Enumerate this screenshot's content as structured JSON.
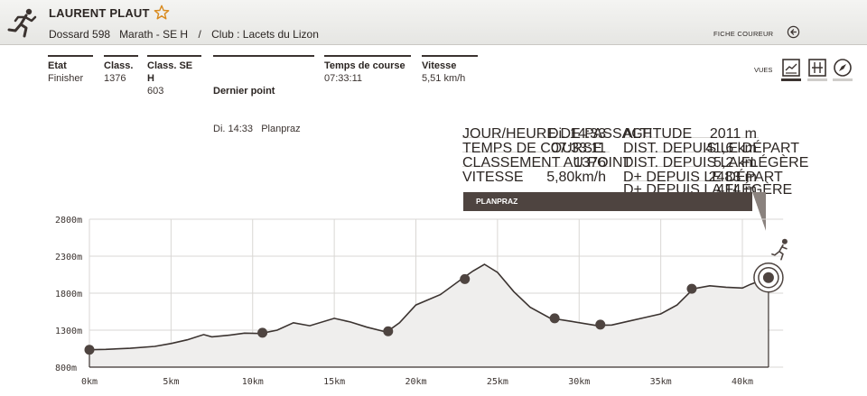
{
  "header": {
    "runner_name": "LAURENT PLAUT",
    "bib": "Dossard 598",
    "category": "Marath - SE H",
    "separator": "/",
    "club": "Club : Lacets du Lizon",
    "fiche_label": "FICHE COUREUR",
    "icons": {
      "runner": "runner-icon",
      "favorite": "star-outline-icon",
      "back": "circle-arrow-left-icon"
    }
  },
  "stats": [
    {
      "label": "Etat",
      "value": "Finisher"
    },
    {
      "label": "Class.",
      "value": "1376"
    },
    {
      "label": "Class. SE H",
      "value": "603"
    },
    {
      "label": "Dernier point",
      "value": "Di. 14:33   Planpraz"
    },
    {
      "label": "Temps de course",
      "value": "07:33:11"
    },
    {
      "label": "Vitesse",
      "value": "5,51 km/h"
    }
  ],
  "views": {
    "label": "VUES",
    "buttons": [
      "chart-view-icon",
      "grid-view-icon",
      "compass-view-icon"
    ],
    "active": 0
  },
  "checkpoint_info": {
    "left": [
      {
        "label": "JOUR/HEURE DE PASSAGE",
        "value": "Di. 14:33"
      },
      {
        "label": "TEMPS DE COURSE",
        "value": "07:33:11"
      },
      {
        "label": "CLASSEMENT AU POINT",
        "value": "1376"
      },
      {
        "label": "VITESSE",
        "value": "5,80km/h"
      }
    ],
    "right": [
      {
        "label": "ALTITUDE",
        "value": "2011 m"
      },
      {
        "label": "DIST. DEPUIS LE DÉPART",
        "value": "41,6 km"
      },
      {
        "label": "DIST. DEPUIS LA FLÉGÈRE",
        "value": "5,2 km"
      },
      {
        "label": "D+ DEPUIS LE DÉPART",
        "value": "2483 m"
      },
      {
        "label": "D+ DEPUIS LA FLÉGÈRE",
        "value": "414 m"
      }
    ],
    "point_name": "PLANPRAZ"
  },
  "colors": {
    "dark": "#4e4440",
    "area": "#efeeed",
    "line": "#3b3330",
    "grid": "#d9d7d4"
  },
  "chart_data": {
    "type": "area",
    "xlabel": "",
    "ylabel": "",
    "xlim": [
      0,
      42.5
    ],
    "ylim": [
      800,
      2800
    ],
    "x_ticks": [
      {
        "v": 0,
        "label": "0km"
      },
      {
        "v": 5,
        "label": "5km"
      },
      {
        "v": 10,
        "label": "10km"
      },
      {
        "v": 15,
        "label": "15km"
      },
      {
        "v": 20,
        "label": "20km"
      },
      {
        "v": 25,
        "label": "25km"
      },
      {
        "v": 30,
        "label": "30km"
      },
      {
        "v": 35,
        "label": "35km"
      },
      {
        "v": 40,
        "label": "40km"
      }
    ],
    "y_ticks": [
      {
        "v": 800,
        "label": "800m"
      },
      {
        "v": 1300,
        "label": "1300m"
      },
      {
        "v": 1800,
        "label": "1800m"
      },
      {
        "v": 2300,
        "label": "2300m"
      },
      {
        "v": 2800,
        "label": "2800m"
      }
    ],
    "grid": true,
    "profile": [
      [
        0.0,
        1035
      ],
      [
        1.0,
        1040
      ],
      [
        2.5,
        1055
      ],
      [
        4.0,
        1080
      ],
      [
        5.0,
        1120
      ],
      [
        6.0,
        1170
      ],
      [
        7.0,
        1240
      ],
      [
        7.5,
        1210
      ],
      [
        8.5,
        1230
      ],
      [
        9.5,
        1260
      ],
      [
        10.5,
        1255
      ],
      [
        11.5,
        1300
      ],
      [
        12.5,
        1400
      ],
      [
        13.5,
        1360
      ],
      [
        15.0,
        1460
      ],
      [
        16.0,
        1410
      ],
      [
        17.0,
        1340
      ],
      [
        18.2,
        1275
      ],
      [
        19.0,
        1400
      ],
      [
        20.0,
        1640
      ],
      [
        21.5,
        1780
      ],
      [
        22.8,
        1990
      ],
      [
        23.5,
        2100
      ],
      [
        24.2,
        2190
      ],
      [
        25.0,
        2080
      ],
      [
        26.0,
        1820
      ],
      [
        27.0,
        1610
      ],
      [
        28.2,
        1465
      ],
      [
        29.5,
        1420
      ],
      [
        31.0,
        1365
      ],
      [
        32.0,
        1370
      ],
      [
        33.0,
        1420
      ],
      [
        34.0,
        1470
      ],
      [
        35.0,
        1520
      ],
      [
        36.0,
        1640
      ],
      [
        37.0,
        1860
      ],
      [
        38.0,
        1900
      ],
      [
        39.0,
        1880
      ],
      [
        40.0,
        1870
      ],
      [
        40.5,
        1920
      ],
      [
        41.6,
        2011
      ]
    ],
    "checkpoints": [
      {
        "km": 0.0,
        "alt": 1035
      },
      {
        "km": 10.6,
        "alt": 1265
      },
      {
        "km": 18.3,
        "alt": 1285
      },
      {
        "km": 23.0,
        "alt": 1990
      },
      {
        "km": 28.5,
        "alt": 1460
      },
      {
        "km": 31.3,
        "alt": 1375
      },
      {
        "km": 36.9,
        "alt": 1860
      }
    ],
    "current_point": {
      "km": 41.6,
      "alt": 2011
    }
  }
}
